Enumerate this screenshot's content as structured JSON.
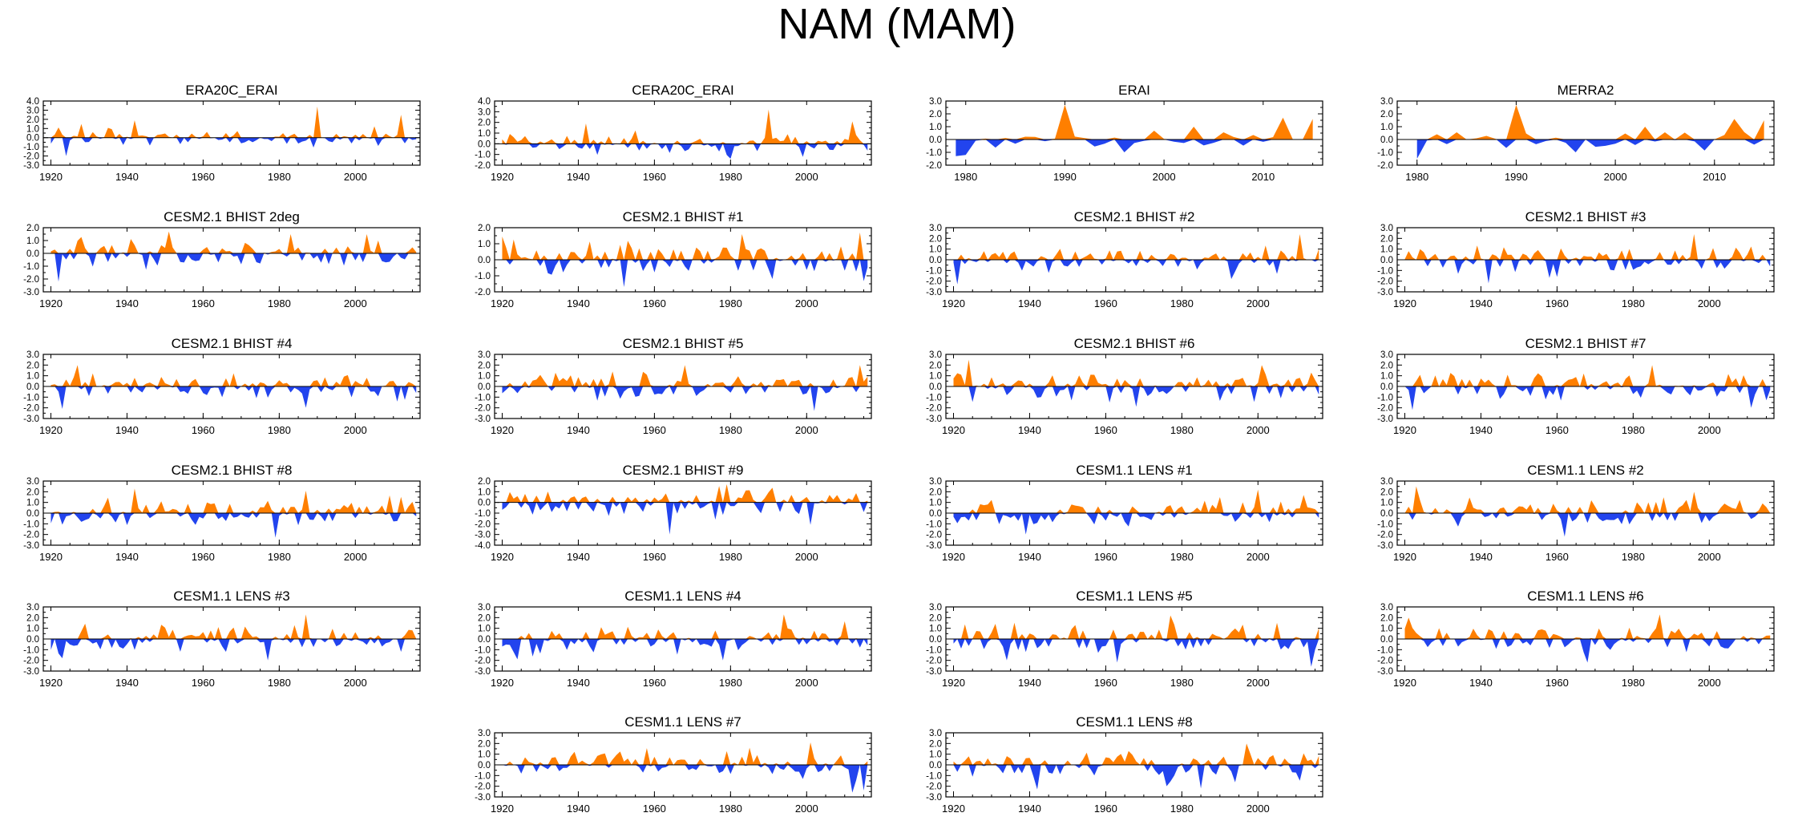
{
  "title": "NAM (MAM)",
  "colors": {
    "positive": "#FF7F00",
    "negative": "#2244EE",
    "axis": "#000000"
  },
  "chart_data": [
    {
      "type": "area",
      "title": "ERA20C_ERAI",
      "ylim": [
        -3,
        4
      ],
      "yticks": [
        "4.0",
        "3.0",
        "2.0",
        "1.0",
        "0.0",
        "-1.0",
        "-2.0",
        "-3.0"
      ],
      "xlim": [
        1918,
        2017
      ],
      "xticks": [
        "1920",
        "1940",
        "1960",
        "1980",
        "2000"
      ],
      "x_start": 1920,
      "seed": 11,
      "amp": 0.75,
      "peaks": [
        [
          1990,
          3.4
        ],
        [
          2012,
          2.5
        ],
        [
          1942,
          1.9
        ],
        [
          1924,
          -2.0
        ]
      ]
    },
    {
      "type": "area",
      "title": "CERA20C_ERAI",
      "ylim": [
        -2,
        4
      ],
      "yticks": [
        "4.0",
        "3.0",
        "2.0",
        "1.0",
        "0.0",
        "-1.0",
        "-2.0"
      ],
      "xlim": [
        1918,
        2017
      ],
      "xticks": [
        "1920",
        "1940",
        "1960",
        "1980",
        "2000"
      ],
      "x_start": 1920,
      "seed": 12,
      "amp": 0.75,
      "peaks": [
        [
          1990,
          3.2
        ],
        [
          2012,
          2.1
        ],
        [
          1942,
          1.9
        ],
        [
          1980,
          -1.4
        ]
      ]
    },
    {
      "type": "area",
      "title": "ERAI",
      "ylim": [
        -2,
        3
      ],
      "yticks": [
        "3.0",
        "2.0",
        "1.0",
        "0.0",
        "-1.0",
        "-2.0"
      ],
      "xlim": [
        1978,
        2016
      ],
      "xticks": [
        "1980",
        "1990",
        "2000",
        "2010"
      ],
      "x_start": 1979,
      "seed": 13,
      "amp": 0.6,
      "peaks": [
        [
          1979,
          -1.3
        ],
        [
          1980,
          -1.2
        ],
        [
          1990,
          2.8
        ],
        [
          2003,
          1.0
        ],
        [
          2012,
          1.7
        ],
        [
          2015,
          1.6
        ],
        [
          1996,
          -1.0
        ]
      ]
    },
    {
      "type": "area",
      "title": "MERRA2",
      "ylim": [
        -2,
        3
      ],
      "yticks": [
        "3.0",
        "2.0",
        "1.0",
        "0.0",
        "-1.0",
        "-2.0"
      ],
      "xlim": [
        1978,
        2016
      ],
      "xticks": [
        "1980",
        "1990",
        "2000",
        "2010"
      ],
      "x_start": 1980,
      "seed": 14,
      "amp": 0.6,
      "peaks": [
        [
          1980,
          -1.5
        ],
        [
          1990,
          2.7
        ],
        [
          2003,
          1.0
        ],
        [
          2012,
          1.6
        ],
        [
          2015,
          1.5
        ],
        [
          1996,
          -1.0
        ]
      ]
    },
    {
      "type": "area",
      "title": "CESM2.1 BHIST 2deg",
      "ylim": [
        -3,
        2
      ],
      "yticks": [
        "2.0",
        "1.0",
        "0.0",
        "-1.0",
        "-2.0",
        "-3.0"
      ],
      "xlim": [
        1918,
        2017
      ],
      "xticks": [
        "1920",
        "1940",
        "1960",
        "1980",
        "2000"
      ],
      "x_start": 1920,
      "seed": 21,
      "amp": 0.9,
      "peaks": [
        [
          1922,
          -2.2
        ],
        [
          1951,
          1.7
        ],
        [
          1983,
          1.5
        ],
        [
          2003,
          1.5
        ]
      ]
    },
    {
      "type": "area",
      "title": "CESM2.1 BHIST #1",
      "ylim": [
        -2,
        2
      ],
      "yticks": [
        "2.0",
        "1.0",
        "0.0",
        "-1.0",
        "-2.0"
      ],
      "xlim": [
        1918,
        2017
      ],
      "xticks": [
        "1920",
        "1940",
        "1960",
        "1980",
        "2000"
      ],
      "x_start": 1920,
      "seed": 22,
      "amp": 0.9,
      "peaks": [
        [
          1952,
          -1.9
        ],
        [
          1983,
          1.6
        ],
        [
          2014,
          1.9
        ]
      ]
    },
    {
      "type": "area",
      "title": "CESM2.1 BHIST #2",
      "ylim": [
        -3,
        3
      ],
      "yticks": [
        "3.0",
        "2.0",
        "1.0",
        "0.0",
        "-1.0",
        "-2.0",
        "-3.0"
      ],
      "xlim": [
        1918,
        2017
      ],
      "xticks": [
        "1920",
        "1940",
        "1960",
        "1980",
        "2000"
      ],
      "x_start": 1920,
      "seed": 23,
      "amp": 0.95,
      "peaks": [
        [
          1921,
          -2.3
        ],
        [
          2011,
          2.4
        ],
        [
          1993,
          -1.8
        ]
      ]
    },
    {
      "type": "area",
      "title": "CESM2.1 BHIST #3",
      "ylim": [
        -3,
        3
      ],
      "yticks": [
        "3.0",
        "2.0",
        "1.0",
        "0.0",
        "-1.0",
        "-2.0",
        "-3.0"
      ],
      "xlim": [
        1918,
        2017
      ],
      "xticks": [
        "1920",
        "1940",
        "1960",
        "1980",
        "2000"
      ],
      "x_start": 1920,
      "seed": 24,
      "amp": 0.95,
      "peaks": [
        [
          1996,
          2.4
        ],
        [
          1942,
          -2.2
        ],
        [
          1960,
          -1.6
        ]
      ]
    },
    {
      "type": "area",
      "title": "CESM2.1 BHIST #4",
      "ylim": [
        -3,
        3
      ],
      "yticks": [
        "3.0",
        "2.0",
        "1.0",
        "0.0",
        "-1.0",
        "-2.0",
        "-3.0"
      ],
      "xlim": [
        1918,
        2017
      ],
      "xticks": [
        "1920",
        "1940",
        "1960",
        "1980",
        "2000"
      ],
      "x_start": 1920,
      "seed": 31,
      "amp": 0.95,
      "peaks": [
        [
          1923,
          -2.1
        ],
        [
          1927,
          2.0
        ],
        [
          1987,
          -2.0
        ]
      ]
    },
    {
      "type": "area",
      "title": "CESM2.1 BHIST #5",
      "ylim": [
        -3,
        3
      ],
      "yticks": [
        "3.0",
        "2.0",
        "1.0",
        "0.0",
        "-1.0",
        "-2.0",
        "-3.0"
      ],
      "xlim": [
        1918,
        2017
      ],
      "xticks": [
        "1920",
        "1940",
        "1960",
        "1980",
        "2000"
      ],
      "x_start": 1920,
      "seed": 32,
      "amp": 1.0,
      "peaks": [
        [
          2014,
          2.0
        ],
        [
          1968,
          2.0
        ],
        [
          2002,
          -2.3
        ]
      ]
    },
    {
      "type": "area",
      "title": "CESM2.1 BHIST #6",
      "ylim": [
        -3,
        3
      ],
      "yticks": [
        "3.0",
        "2.0",
        "1.0",
        "0.0",
        "-1.0",
        "-2.0",
        "-3.0"
      ],
      "xlim": [
        1918,
        2017
      ],
      "xticks": [
        "1920",
        "1940",
        "1960",
        "1980",
        "2000"
      ],
      "x_start": 1920,
      "seed": 33,
      "amp": 0.95,
      "peaks": [
        [
          1924,
          2.5
        ],
        [
          1968,
          -1.9
        ],
        [
          2001,
          2.0
        ]
      ]
    },
    {
      "type": "area",
      "title": "CESM2.1 BHIST #7",
      "ylim": [
        -3,
        3
      ],
      "yticks": [
        "3.0",
        "2.0",
        "1.0",
        "0.0",
        "-1.0",
        "-2.0",
        "-3.0"
      ],
      "xlim": [
        1918,
        2017
      ],
      "xticks": [
        "1920",
        "1940",
        "1960",
        "1980",
        "2000"
      ],
      "x_start": 1920,
      "seed": 34,
      "amp": 0.95,
      "peaks": [
        [
          1922,
          -2.2
        ],
        [
          1985,
          2.0
        ],
        [
          2011,
          -2.0
        ]
      ]
    },
    {
      "type": "area",
      "title": "CESM2.1 BHIST #8",
      "ylim": [
        -3,
        3
      ],
      "yticks": [
        "3.0",
        "2.0",
        "1.0",
        "0.0",
        "-1.0",
        "-2.0",
        "-3.0"
      ],
      "xlim": [
        1918,
        2017
      ],
      "xticks": [
        "1920",
        "1940",
        "1960",
        "1980",
        "2000"
      ],
      "x_start": 1920,
      "seed": 41,
      "amp": 0.95,
      "peaks": [
        [
          1942,
          2.3
        ],
        [
          1987,
          2.1
        ],
        [
          1979,
          -2.3
        ]
      ]
    },
    {
      "type": "area",
      "title": "CESM2.1 BHIST #9",
      "ylim": [
        -4,
        2
      ],
      "yticks": [
        "2.0",
        "1.0",
        "0.0",
        "-1.0",
        "-2.0",
        "-3.0",
        "-4.0"
      ],
      "xlim": [
        1918,
        2017
      ],
      "xticks": [
        "1920",
        "1940",
        "1960",
        "1980",
        "2000"
      ],
      "x_start": 1920,
      "seed": 42,
      "amp": 1.0,
      "peaks": [
        [
          1964,
          -3.0
        ],
        [
          1979,
          1.8
        ],
        [
          2001,
          -2.1
        ]
      ]
    },
    {
      "type": "area",
      "title": "CESM1.1 LENS #1",
      "ylim": [
        -3,
        3
      ],
      "yticks": [
        "3.0",
        "2.0",
        "1.0",
        "0.0",
        "-1.0",
        "-2.0",
        "-3.0"
      ],
      "xlim": [
        1918,
        2017
      ],
      "xticks": [
        "1920",
        "1940",
        "1960",
        "1980",
        "2000"
      ],
      "x_start": 1920,
      "seed": 43,
      "amp": 0.95,
      "peaks": [
        [
          2000,
          2.2
        ],
        [
          2012,
          1.7
        ],
        [
          1939,
          -2.0
        ]
      ]
    },
    {
      "type": "area",
      "title": "CESM1.1 LENS #2",
      "ylim": [
        -3,
        3
      ],
      "yticks": [
        "3.0",
        "2.0",
        "1.0",
        "0.0",
        "-1.0",
        "-2.0",
        "-3.0"
      ],
      "xlim": [
        1918,
        2017
      ],
      "xticks": [
        "1920",
        "1940",
        "1960",
        "1980",
        "2000"
      ],
      "x_start": 1920,
      "seed": 44,
      "amp": 0.95,
      "peaks": [
        [
          1923,
          2.5
        ],
        [
          1962,
          -2.2
        ],
        [
          1996,
          2.0
        ]
      ]
    },
    {
      "type": "area",
      "title": "CESM1.1 LENS #3",
      "ylim": [
        -3,
        3
      ],
      "yticks": [
        "3.0",
        "2.0",
        "1.0",
        "0.0",
        "-1.0",
        "-2.0",
        "-3.0"
      ],
      "xlim": [
        1918,
        2017
      ],
      "xticks": [
        "1920",
        "1940",
        "1960",
        "1980",
        "2000"
      ],
      "x_start": 1920,
      "seed": 51,
      "amp": 0.95,
      "peaks": [
        [
          1987,
          2.3
        ],
        [
          1923,
          -1.8
        ],
        [
          1977,
          -2.0
        ]
      ]
    },
    {
      "type": "area",
      "title": "CESM1.1 LENS #4",
      "ylim": [
        -3,
        3
      ],
      "yticks": [
        "3.0",
        "2.0",
        "1.0",
        "0.0",
        "-1.0",
        "-2.0",
        "-3.0"
      ],
      "xlim": [
        1918,
        2017
      ],
      "xticks": [
        "1920",
        "1940",
        "1960",
        "1980",
        "2000"
      ],
      "x_start": 1920,
      "seed": 52,
      "amp": 0.95,
      "peaks": [
        [
          1994,
          2.3
        ],
        [
          1978,
          -2.0
        ],
        [
          1924,
          -1.9
        ]
      ]
    },
    {
      "type": "area",
      "title": "CESM1.1 LENS #5",
      "ylim": [
        -3,
        3
      ],
      "yticks": [
        "3.0",
        "2.0",
        "1.0",
        "0.0",
        "-1.0",
        "-2.0",
        "-3.0"
      ],
      "xlim": [
        1918,
        2017
      ],
      "xticks": [
        "1920",
        "1940",
        "1960",
        "1980",
        "2000"
      ],
      "x_start": 1920,
      "seed": 53,
      "amp": 1.05,
      "peaks": [
        [
          2014,
          -2.6
        ],
        [
          1963,
          -2.2
        ],
        [
          1977,
          2.2
        ]
      ]
    },
    {
      "type": "area",
      "title": "CESM1.1 LENS #6",
      "ylim": [
        -3,
        3
      ],
      "yticks": [
        "3.0",
        "2.0",
        "1.0",
        "0.0",
        "-1.0",
        "-2.0",
        "-3.0"
      ],
      "xlim": [
        1918,
        2017
      ],
      "xticks": [
        "1920",
        "1940",
        "1960",
        "1980",
        "2000"
      ],
      "x_start": 1920,
      "seed": 54,
      "amp": 0.95,
      "peaks": [
        [
          1987,
          2.3
        ],
        [
          1968,
          -2.2
        ],
        [
          1921,
          2.0
        ]
      ]
    },
    {
      "type": "area",
      "title": "CESM1.1 LENS #7",
      "ylim": [
        -3,
        3
      ],
      "yticks": [
        "3.0",
        "2.0",
        "1.0",
        "0.0",
        "-1.0",
        "-2.0",
        "-3.0"
      ],
      "xlim": [
        1918,
        2017
      ],
      "xticks": [
        "1920",
        "1940",
        "1960",
        "1980",
        "2000"
      ],
      "x_start": 1920,
      "seed": 61,
      "amp": 0.95,
      "peaks": [
        [
          2012,
          -2.6
        ],
        [
          2015,
          -2.4
        ],
        [
          2001,
          2.1
        ],
        [
          1985,
          1.6
        ]
      ]
    },
    {
      "type": "area",
      "title": "CESM1.1 LENS #8",
      "ylim": [
        -3,
        3
      ],
      "yticks": [
        "3.0",
        "2.0",
        "1.0",
        "0.0",
        "-1.0",
        "-2.0",
        "-3.0"
      ],
      "xlim": [
        1918,
        2017
      ],
      "xticks": [
        "1920",
        "1940",
        "1960",
        "1980",
        "2000"
      ],
      "x_start": 1920,
      "seed": 62,
      "amp": 1.0,
      "peaks": [
        [
          1942,
          -2.3
        ],
        [
          1985,
          -2.2
        ],
        [
          1976,
          -2.0
        ],
        [
          1997,
          2.0
        ]
      ]
    }
  ]
}
